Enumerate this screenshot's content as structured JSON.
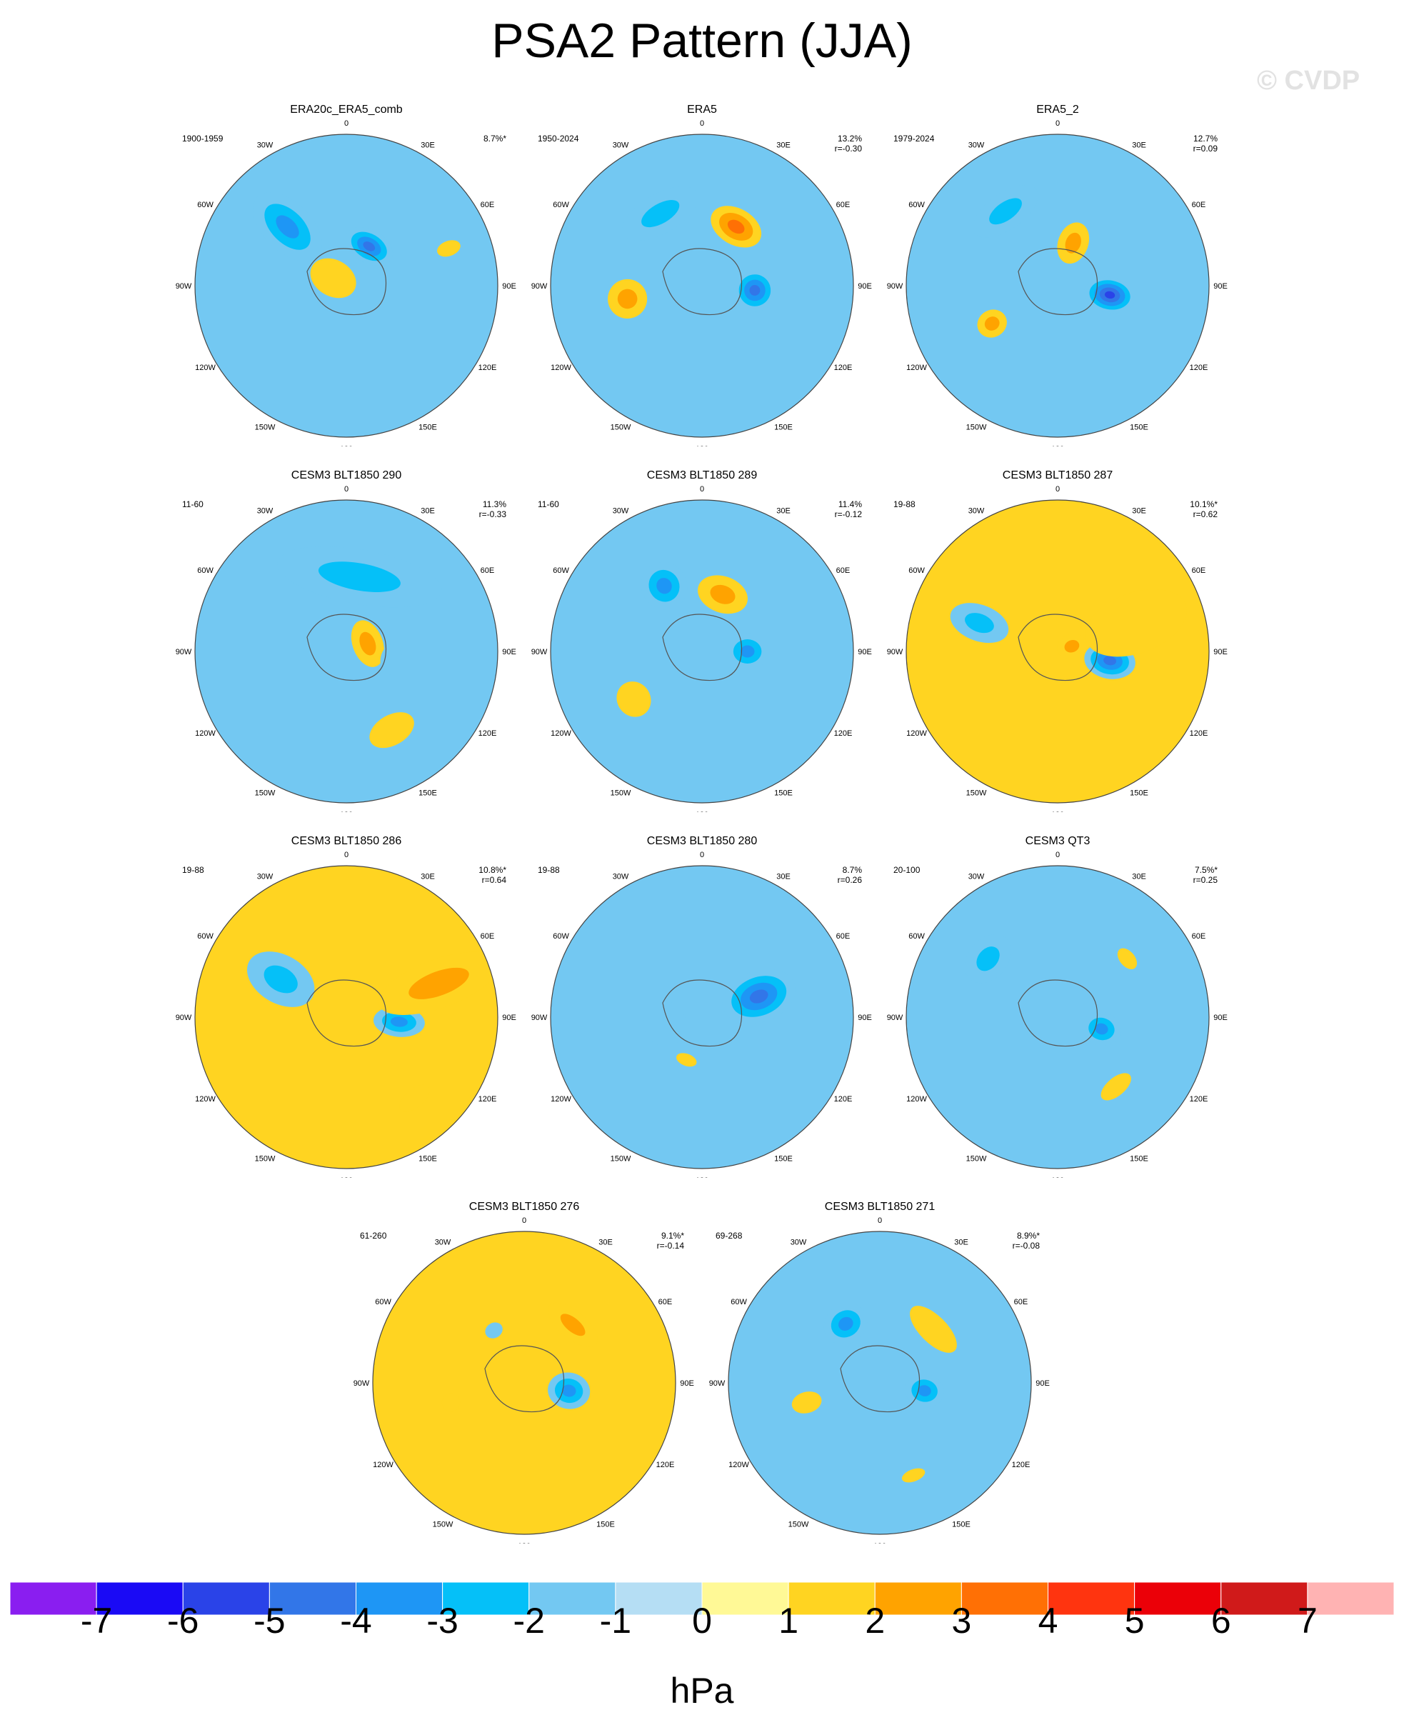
{
  "title": "PSA2 Pattern (JJA)",
  "watermark": "© CVDP",
  "colors": {
    "levels": [
      "#8a1ef0",
      "#1a0af5",
      "#2a43e8",
      "#3276e8",
      "#1e96f5",
      "#05c0f8",
      "#73c8f2",
      "#b5def4",
      "#fff996",
      "#ffd421",
      "#ffa300",
      "#ff7005",
      "#ff340f",
      "#eb0008",
      "#d01a1a",
      "#ffb3b3"
    ],
    "coast": "#555555",
    "grid": "#444444"
  },
  "chart_data": {
    "type": "map-panels",
    "projection": "south-polar-stereographic",
    "variable_unit": "hPa",
    "colorbar": {
      "ticks": [
        -7,
        -6,
        -5,
        -4,
        -3,
        -2,
        -1,
        0,
        1,
        2,
        3,
        4,
        5,
        6,
        7
      ],
      "tick_labels": [
        "-7",
        "-6",
        "-5",
        "-4",
        "-3",
        "-2",
        "-1",
        "0",
        "1",
        "2",
        "3",
        "4",
        "5",
        "6",
        "7"
      ],
      "label": "hPa"
    },
    "longitude_labels": [
      "0",
      "30E",
      "60E",
      "90E",
      "120E",
      "150E",
      "180",
      "150W",
      "120W",
      "90W",
      "60W",
      "30W"
    ],
    "panels": [
      {
        "title": "ERA20c_ERA5_comb",
        "period": "1900-1959",
        "pct": "8.7%*",
        "corr": "",
        "anomalies": [
          {
            "lon": 135,
            "r": 0.55,
            "v": -3,
            "rx": 0.16,
            "ry": 0.28
          },
          {
            "lon": 210,
            "r": 0.3,
            "v": -4,
            "rx": 0.17,
            "ry": 0.11
          },
          {
            "lon": 120,
            "r": 0.1,
            "v": 1,
            "rx": 0.12,
            "ry": 0.16
          },
          {
            "lon": 250,
            "r": 0.72,
            "v": 1,
            "rx": 0.05,
            "ry": 0.08
          }
        ]
      },
      {
        "title": "ERA5",
        "period": "1950-2024",
        "pct": "13.2%",
        "corr": "r=-0.30",
        "anomalies": [
          {
            "lon": 275,
            "r": 0.35,
            "v": -4,
            "rx": 0.14,
            "ry": 0.14
          },
          {
            "lon": 210,
            "r": 0.45,
            "v": 3,
            "rx": 0.18,
            "ry": 0.12
          },
          {
            "lon": 80,
            "r": 0.5,
            "v": 2,
            "rx": 0.13,
            "ry": 0.13
          },
          {
            "lon": 150,
            "r": 0.55,
            "v": -2,
            "rx": 0.28,
            "ry": 0.13
          }
        ]
      },
      {
        "title": "ERA5_2",
        "period": "1979-2024",
        "pct": "12.7%",
        "corr": "r=0.09",
        "anomalies": [
          {
            "lon": 280,
            "r": 0.35,
            "v": -5,
            "rx": 0.12,
            "ry": 0.17
          },
          {
            "lon": 200,
            "r": 0.3,
            "v": 2,
            "rx": 0.1,
            "ry": 0.14
          },
          {
            "lon": 60,
            "r": 0.5,
            "v": 2,
            "rx": 0.09,
            "ry": 0.1
          },
          {
            "lon": 145,
            "r": 0.6,
            "v": -2,
            "rx": 0.25,
            "ry": 0.12
          }
        ]
      },
      {
        "title": "CESM3 BLT1850 290",
        "period": "11-60",
        "pct": "11.3%",
        "corr": "r=-0.33",
        "anomalies": [
          {
            "lon": 250,
            "r": 0.15,
            "v": 2,
            "rx": 0.16,
            "ry": 0.1
          },
          {
            "lon": 190,
            "r": 0.5,
            "v": -2,
            "rx": 0.55,
            "ry": 0.18
          },
          {
            "lon": 330,
            "r": 0.6,
            "v": 1,
            "rx": 0.16,
            "ry": 0.1
          },
          {
            "lon": 280,
            "r": 0.3,
            "v": -1,
            "rx": 0.1,
            "ry": 0.07
          }
        ]
      },
      {
        "title": "CESM3 BLT1850 289",
        "period": "11-60",
        "pct": "11.4%",
        "corr": "r=-0.12",
        "anomalies": [
          {
            "lon": 270,
            "r": 0.3,
            "v": -3,
            "rx": 0.12,
            "ry": 0.14
          },
          {
            "lon": 200,
            "r": 0.4,
            "v": 2,
            "rx": 0.17,
            "ry": 0.12
          },
          {
            "lon": 150,
            "r": 0.5,
            "v": -3,
            "rx": 0.15,
            "ry": 0.16
          },
          {
            "lon": 55,
            "r": 0.55,
            "v": 1,
            "rx": 0.12,
            "ry": 0.11
          }
        ]
      },
      {
        "title": "CESM3 BLT1850 287",
        "period": "19-88",
        "pct": "10.1%*",
        "corr": "r=0.62",
        "anomalies": [
          {
            "lon": 280,
            "r": 0.35,
            "v": -4,
            "rx": 0.12,
            "ry": 0.17
          },
          {
            "lon": 250,
            "r": 0.55,
            "v": 1,
            "rx": 0.2,
            "ry": 0.35
          },
          {
            "lon": 110,
            "r": 0.55,
            "v": -2,
            "rx": 0.12,
            "ry": 0.2
          },
          {
            "lon": 250,
            "r": 0.1,
            "v": 2,
            "rx": 0.08,
            "ry": 0.1
          }
        ]
      },
      {
        "title": "CESM3 BLT1850 286",
        "period": "19-88",
        "pct": "10.8%*",
        "corr": "r=0.64",
        "anomalies": [
          {
            "lon": 275,
            "r": 0.35,
            "v": -3,
            "rx": 0.1,
            "ry": 0.17
          },
          {
            "lon": 250,
            "r": 0.65,
            "v": 2,
            "rx": 0.16,
            "ry": 0.42
          },
          {
            "lon": 120,
            "r": 0.5,
            "v": -2,
            "rx": 0.16,
            "ry": 0.24
          },
          {
            "lon": 320,
            "r": 0.7,
            "v": 1,
            "rx": 0.12,
            "ry": 0.06
          }
        ]
      },
      {
        "title": "CESM3 BLT1850 280",
        "period": "19-88",
        "pct": "8.7%",
        "corr": "r=0.26",
        "anomalies": [
          {
            "lon": 250,
            "r": 0.4,
            "v": -4,
            "rx": 0.17,
            "ry": 0.25
          },
          {
            "lon": 80,
            "r": 0.25,
            "v": -1,
            "rx": 0.15,
            "ry": 0.14
          },
          {
            "lon": 20,
            "r": 0.3,
            "v": 1,
            "rx": 0.07,
            "ry": 0.04
          }
        ]
      },
      {
        "title": "CESM3 QT3",
        "period": "20-100",
        "pct": "7.5%*",
        "corr": "r=0.25",
        "anomalies": [
          {
            "lon": 285,
            "r": 0.3,
            "v": -3,
            "rx": 0.11,
            "ry": 0.13
          },
          {
            "lon": 320,
            "r": 0.6,
            "v": 1,
            "rx": 0.12,
            "ry": 0.06
          },
          {
            "lon": 130,
            "r": 0.6,
            "v": -2,
            "rx": 0.18,
            "ry": 0.13
          },
          {
            "lon": 230,
            "r": 0.6,
            "v": 1,
            "rx": 0.08,
            "ry": 0.05
          }
        ]
      },
      {
        "title": "CESM3 BLT1850 276",
        "period": "61-260",
        "pct": "9.1%*",
        "corr": "r=-0.14",
        "anomalies": [
          {
            "lon": 280,
            "r": 0.3,
            "v": -3,
            "rx": 0.12,
            "ry": 0.14
          },
          {
            "lon": 220,
            "r": 0.5,
            "v": 2,
            "rx": 0.2,
            "ry": 0.09
          },
          {
            "lon": 75,
            "r": 0.5,
            "v": 1,
            "rx": 0.06,
            "ry": 0.06
          },
          {
            "lon": 150,
            "r": 0.4,
            "v": -1,
            "rx": 0.06,
            "ry": 0.05
          }
        ]
      },
      {
        "title": "CESM3 BLT1850 271",
        "period": "69-268",
        "pct": "8.9%*",
        "corr": "r=-0.08",
        "anomalies": [
          {
            "lon": 280,
            "r": 0.3,
            "v": -3,
            "rx": 0.11,
            "ry": 0.13
          },
          {
            "lon": 225,
            "r": 0.5,
            "v": 1,
            "rx": 0.2,
            "ry": 0.09
          },
          {
            "lon": 150,
            "r": 0.45,
            "v": -3,
            "rx": 0.15,
            "ry": 0.13
          },
          {
            "lon": 75,
            "r": 0.5,
            "v": 1,
            "rx": 0.07,
            "ry": 0.1
          },
          {
            "lon": 340,
            "r": 0.65,
            "v": 1,
            "rx": 0.08,
            "ry": 0.04
          }
        ]
      }
    ]
  }
}
